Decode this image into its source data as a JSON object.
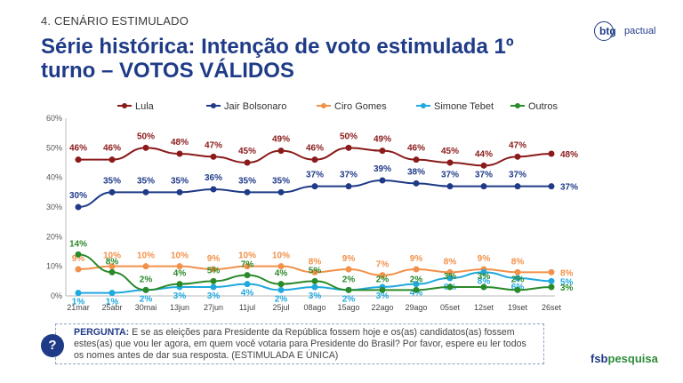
{
  "header": {
    "section_label": "4. CENÁRIO ESTIMULADO",
    "title": "Série histórica: Intenção de voto estimulada 1º turno – VOTOS VÁLIDOS"
  },
  "logos": {
    "btg_bold": "btg",
    "btg_light": "pactual",
    "fsb_bold": "fsb",
    "fsb_light": "pesquisa"
  },
  "question": {
    "icon": "?",
    "label": "PERGUNTA:",
    "text": "E se as eleições para Presidente da República fossem hoje e os(as) candidatos(as) fossem estes(as) que vou ler agora, em quem você votaria para Presidente do Brasil? Por favor, espere eu ler todos os nomes antes de dar sua resposta. (ESTIMULADA E ÚNICA)"
  },
  "chart_data": {
    "type": "line",
    "title": "",
    "xlabel": "",
    "ylabel": "",
    "ylim": [
      0,
      60
    ],
    "yticks": [
      0,
      10,
      20,
      30,
      40,
      50,
      60
    ],
    "ytick_labels": [
      "0%",
      "10%",
      "20%",
      "30%",
      "40%",
      "50%",
      "60%"
    ],
    "grid": false,
    "legend": "top",
    "categories": [
      "21mar",
      "25abr",
      "30mai",
      "13jun",
      "27jun",
      "11jul",
      "25jul",
      "08ago",
      "15ago",
      "22ago",
      "29ago",
      "05set",
      "12set",
      "19set",
      "26set"
    ],
    "series": [
      {
        "name": "Lula",
        "color": "#8b1a1a",
        "values": [
          46,
          46,
          50,
          48,
          47,
          45,
          49,
          46,
          50,
          49,
          46,
          45,
          44,
          47,
          48
        ]
      },
      {
        "name": "Jair Bolsonaro",
        "color": "#1f3b88",
        "values": [
          30,
          35,
          35,
          35,
          36,
          35,
          35,
          37,
          37,
          39,
          38,
          37,
          37,
          37,
          37
        ]
      },
      {
        "name": "Ciro Gomes",
        "color": "#f2914a",
        "values": [
          9,
          10,
          10,
          10,
          9,
          10,
          10,
          8,
          9,
          7,
          9,
          8,
          9,
          8,
          8
        ]
      },
      {
        "name": "Simone Tebet",
        "color": "#1fa9df",
        "values": [
          1,
          1,
          2,
          3,
          3,
          4,
          2,
          3,
          2,
          3,
          4,
          6,
          8,
          6,
          5
        ]
      },
      {
        "name": "Outros",
        "color": "#2a8a2a",
        "values": [
          14,
          8,
          2,
          4,
          5,
          7,
          4,
          5,
          2,
          2,
          2,
          3,
          3,
          2,
          3
        ]
      }
    ],
    "point_labels": [
      [
        "46%",
        "46%",
        "50%",
        "48%",
        "47%",
        "45%",
        "49%",
        "46%",
        "50%",
        "49%",
        "46%",
        "45%",
        "44%",
        "47%",
        "48%"
      ],
      [
        "30%",
        "35%",
        "35%",
        "35%",
        "36%",
        "35%",
        "35%",
        "37%",
        "37%",
        "39%",
        "38%",
        "37%",
        "37%",
        "37%",
        "37%"
      ],
      [
        "9%",
        "10%",
        "10%",
        "10%",
        "9%",
        "10%",
        "10%",
        "8%",
        "9%",
        "7%",
        "9%",
        "8%",
        "9%",
        "8%",
        "8%"
      ],
      [
        "1%",
        "1%",
        "2%",
        "3%",
        "3%",
        "4%",
        "2%",
        "3%",
        "2%",
        "3%",
        "4%",
        "6%",
        "8%",
        "6%",
        "5%"
      ],
      [
        "14%",
        "8%",
        "2%",
        "4%",
        "5%",
        "7%",
        "4%",
        "5%",
        "2%",
        "2%",
        "2%",
        "3%",
        "3%",
        "2%",
        "3%"
      ]
    ]
  }
}
